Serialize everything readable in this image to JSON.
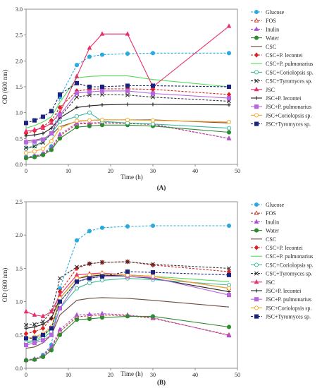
{
  "chart_data": [
    {
      "type": "line",
      "panel_label": "(A)",
      "xlabel": "Time (h)",
      "ylabel": "OD (600 nm)",
      "xlim": [
        0,
        50
      ],
      "ylim": [
        0,
        3.0
      ],
      "x_ticks": [
        "0",
        "10",
        "20",
        "30",
        "40",
        "50"
      ],
      "y_ticks": [
        "0.0",
        "0.5",
        "1.0",
        "1.5",
        "2.0",
        "2.5",
        "3.0"
      ],
      "x": [
        0,
        2,
        4,
        6,
        8,
        12,
        15,
        18,
        24,
        30,
        48
      ],
      "legend_position": "right",
      "series": [
        {
          "name": "Glucose",
          "color": "#29a9e0",
          "dash": "3,2",
          "marker": "circle",
          "fill": true,
          "values": [
            0.15,
            0.16,
            0.2,
            0.35,
            1.3,
            1.92,
            2.08,
            2.12,
            2.14,
            2.15,
            2.15
          ]
        },
        {
          "name": "FOS",
          "color": "#c0392b",
          "dash": "3,2",
          "marker": "triangle",
          "fill": false,
          "values": [
            0.13,
            0.15,
            0.2,
            0.3,
            0.55,
            0.78,
            0.79,
            0.8,
            0.79,
            0.77,
            0.5
          ]
        },
        {
          "name": "Inulin",
          "color": "#b14fd6",
          "dash": "3,2",
          "marker": "triangle",
          "fill": true,
          "values": [
            0.14,
            0.16,
            0.21,
            0.32,
            0.58,
            0.8,
            0.8,
            0.81,
            0.8,
            0.78,
            0.5
          ]
        },
        {
          "name": "Water",
          "color": "#2e8b2e",
          "dash": "",
          "marker": "circle",
          "fill": true,
          "values": [
            0.12,
            0.14,
            0.18,
            0.28,
            0.5,
            0.72,
            0.74,
            0.76,
            0.76,
            0.74,
            0.62
          ]
        },
        {
          "name": "CSC",
          "color": "#6d4c41",
          "dash": "",
          "marker": "none",
          "fill": false,
          "values": [
            0.45,
            0.47,
            0.5,
            0.57,
            0.73,
            0.83,
            0.85,
            0.86,
            0.86,
            0.86,
            0.8
          ]
        },
        {
          "name": "CSC+P. lecontei",
          "color": "#e02020",
          "dash": "3,2",
          "marker": "diamond",
          "fill": true,
          "values": [
            0.6,
            0.65,
            0.73,
            0.85,
            1.1,
            1.42,
            1.45,
            1.46,
            1.46,
            1.45,
            1.35
          ]
        },
        {
          "name": "CSC+P. pulmonarius",
          "color": "#55dd55",
          "dash": "",
          "marker": "none",
          "fill": false,
          "values": [
            0.7,
            0.75,
            0.82,
            0.92,
            1.2,
            1.67,
            1.7,
            1.71,
            1.71,
            1.64,
            1.5
          ]
        },
        {
          "name": "CSC+Coriolopsis sp.",
          "color": "#3ab89a",
          "dash": "",
          "marker": "circle",
          "fill": false,
          "values": [
            0.3,
            0.35,
            0.45,
            0.6,
            0.82,
            0.93,
            1.0,
            0.83,
            0.8,
            0.78,
            0.7
          ]
        },
        {
          "name": "CSC+Tyromyces sp.",
          "color": "#333333",
          "dash": "3,2",
          "marker": "x",
          "fill": false,
          "values": [
            0.32,
            0.35,
            0.42,
            0.6,
            0.92,
            1.3,
            1.34,
            1.35,
            1.34,
            1.3,
            1.22
          ]
        },
        {
          "name": "JSC",
          "color": "#e8306a",
          "dash": "",
          "marker": "triangle",
          "fill": true,
          "values": [
            0.64,
            0.67,
            0.7,
            0.8,
            1.0,
            1.7,
            2.25,
            2.52,
            2.52,
            1.5,
            2.67
          ]
        },
        {
          "name": "JSC+P. lecontei",
          "color": "#222222",
          "dash": "",
          "marker": "plus",
          "fill": false,
          "values": [
            0.55,
            0.57,
            0.6,
            0.7,
            0.9,
            1.1,
            1.13,
            1.15,
            1.16,
            1.16,
            1.15
          ]
        },
        {
          "name": "JSC+P. pulmonarius",
          "color": "#b866e0",
          "dash": "",
          "marker": "square",
          "fill": true,
          "values": [
            0.43,
            0.44,
            0.48,
            0.6,
            0.95,
            1.38,
            1.4,
            1.42,
            1.42,
            1.37,
            1.28
          ]
        },
        {
          "name": "JSC+Coriolopsis sp.",
          "color": "#f5a623",
          "dash": "",
          "marker": "circle",
          "fill": false,
          "values": [
            0.22,
            0.25,
            0.3,
            0.45,
            0.7,
            0.84,
            0.85,
            0.86,
            0.86,
            0.85,
            0.82
          ]
        },
        {
          "name": "JSC+Tyromyces sp.",
          "color": "#1a237e",
          "dash": "3,2",
          "marker": "square",
          "fill": true,
          "values": [
            0.8,
            0.85,
            0.92,
            1.03,
            1.35,
            1.57,
            1.5,
            1.5,
            1.52,
            1.52,
            1.5
          ]
        }
      ]
    },
    {
      "type": "line",
      "panel_label": "(B)",
      "xlabel": "Time (h)",
      "ylabel": "OD (600 nm)",
      "xlim": [
        0,
        50
      ],
      "ylim": [
        0,
        2.5
      ],
      "x_ticks": [
        "0",
        "10",
        "20",
        "30",
        "40",
        "50"
      ],
      "y_ticks": [
        "0.0",
        "0.5",
        "1.0",
        "1.5",
        "2.0",
        "2.5"
      ],
      "x": [
        0,
        2,
        4,
        6,
        8,
        12,
        15,
        18,
        24,
        30,
        48
      ],
      "legend_position": "right",
      "series": [
        {
          "name": "Glucose",
          "color": "#29a9e0",
          "dash": "3,2",
          "marker": "circle",
          "fill": true,
          "values": [
            0.12,
            0.13,
            0.2,
            0.35,
            1.2,
            1.92,
            2.06,
            2.11,
            2.13,
            2.14,
            2.14
          ]
        },
        {
          "name": "FOS",
          "color": "#c0392b",
          "dash": "3,2",
          "marker": "triangle",
          "fill": false,
          "values": [
            0.12,
            0.13,
            0.18,
            0.3,
            0.55,
            0.77,
            0.79,
            0.8,
            0.79,
            0.75,
            0.5
          ]
        },
        {
          "name": "Inulin",
          "color": "#b14fd6",
          "dash": "3,2",
          "marker": "triangle",
          "fill": true,
          "values": [
            0.13,
            0.14,
            0.19,
            0.32,
            0.58,
            0.8,
            0.81,
            0.82,
            0.8,
            0.76,
            0.49
          ]
        },
        {
          "name": "Water",
          "color": "#2e8b2e",
          "dash": "",
          "marker": "circle",
          "fill": true,
          "values": [
            0.12,
            0.13,
            0.17,
            0.27,
            0.5,
            0.73,
            0.74,
            0.76,
            0.78,
            0.78,
            0.62
          ]
        },
        {
          "name": "CSC",
          "color": "#6d4c41",
          "dash": "",
          "marker": "none",
          "fill": false,
          "values": [
            0.3,
            0.32,
            0.38,
            0.5,
            0.8,
            1.02,
            1.05,
            1.06,
            1.05,
            1.02,
            0.92
          ]
        },
        {
          "name": "CSC+P. lecontei",
          "color": "#e02020",
          "dash": "3,2",
          "marker": "diamond",
          "fill": true,
          "values": [
            0.52,
            0.55,
            0.6,
            0.75,
            1.15,
            1.5,
            1.57,
            1.59,
            1.6,
            1.55,
            1.45
          ]
        },
        {
          "name": "CSC+P. pulmonarius",
          "color": "#55dd55",
          "dash": "",
          "marker": "none",
          "fill": false,
          "values": [
            0.4,
            0.42,
            0.48,
            0.6,
            1.0,
            1.3,
            1.35,
            1.38,
            1.4,
            1.38,
            1.3
          ]
        },
        {
          "name": "CSC+Coriolopsis sp.",
          "color": "#3ab89a",
          "dash": "",
          "marker": "circle",
          "fill": false,
          "values": [
            0.38,
            0.4,
            0.45,
            0.55,
            0.9,
            1.2,
            1.28,
            1.32,
            1.35,
            1.33,
            1.25
          ]
        },
        {
          "name": "CSC+Tyromyces sp.",
          "color": "#333333",
          "dash": "3,2",
          "marker": "x",
          "fill": false,
          "values": [
            0.65,
            0.66,
            0.7,
            0.85,
            1.35,
            1.52,
            1.57,
            1.59,
            1.6,
            1.56,
            1.5
          ]
        },
        {
          "name": "JSC",
          "color": "#e8306a",
          "dash": "",
          "marker": "triangle",
          "fill": true,
          "values": [
            0.85,
            0.8,
            0.78,
            0.85,
            1.1,
            1.4,
            1.42,
            1.43,
            1.4,
            1.38,
            1.2
          ]
        },
        {
          "name": "JSC+P. lecontei",
          "color": "#222222",
          "dash": "",
          "marker": "plus",
          "fill": false,
          "values": [
            0.6,
            0.62,
            0.66,
            0.75,
            1.05,
            1.35,
            1.38,
            1.4,
            1.38,
            1.35,
            1.15
          ]
        },
        {
          "name": "JSC+P. pulmonarius",
          "color": "#b866e0",
          "dash": "",
          "marker": "square",
          "fill": true,
          "values": [
            0.35,
            0.38,
            0.42,
            0.5,
            0.9,
            1.3,
            1.36,
            1.38,
            1.38,
            1.36,
            1.1
          ]
        },
        {
          "name": "JSC+Coriolopsis sp.",
          "color": "#f5a623",
          "dash": "",
          "marker": "circle",
          "fill": false,
          "values": [
            0.45,
            0.47,
            0.52,
            0.62,
            1.05,
            1.35,
            1.4,
            1.42,
            1.4,
            1.38,
            1.2
          ]
        },
        {
          "name": "JSC+Tyromyces sp.",
          "color": "#1a237e",
          "dash": "3,2",
          "marker": "square",
          "fill": true,
          "values": [
            0.45,
            0.45,
            0.5,
            0.6,
            1.0,
            1.3,
            1.35,
            1.38,
            1.45,
            1.44,
            1.4
          ]
        }
      ]
    }
  ]
}
